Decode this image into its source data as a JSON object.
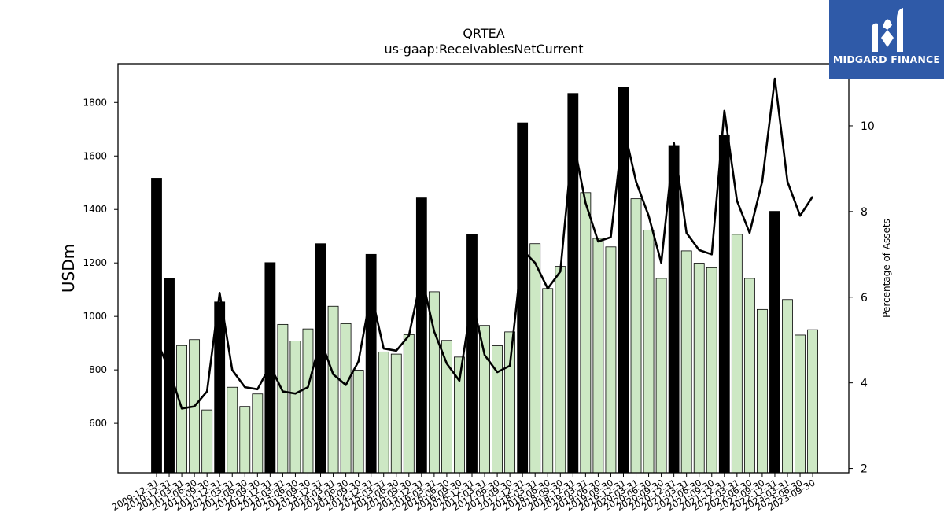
{
  "colors": {
    "bar_highlight": "#000000",
    "bar_regular": "#cde8c4",
    "bar_edge": "#000000",
    "line": "#000000",
    "logo_bg": "#2f5aa8"
  },
  "logo": {
    "text": "MIDGARD FINANCE",
    "icon": "midgard-logo-icon"
  },
  "chart_data": {
    "type": "bar",
    "title": "QRTEA",
    "subtitle": "us-gaap:ReceivablesNetCurrent",
    "ylabel": "USDm",
    "y2label": "Percentage of Assets",
    "ylim": [
      415,
      1945
    ],
    "y2lim": [
      1.9,
      11.45
    ],
    "yticks": [
      600,
      800,
      1000,
      1200,
      1400,
      1600,
      1800
    ],
    "y2ticks": [
      2,
      4,
      6,
      8,
      10
    ],
    "grid": false,
    "categories": [
      "2009-12-31",
      "2010-12-31",
      "2011-03-31",
      "2011-06-30",
      "2011-09-30",
      "2011-12-31",
      "2012-03-31",
      "2012-06-30",
      "2012-09-30",
      "2012-12-31",
      "2013-03-31",
      "2013-06-30",
      "2013-09-30",
      "2013-12-31",
      "2014-03-31",
      "2014-06-30",
      "2014-09-30",
      "2014-12-31",
      "2015-03-31",
      "2015-06-30",
      "2015-09-30",
      "2015-12-31",
      "2016-03-31",
      "2016-06-30",
      "2016-09-30",
      "2016-12-31",
      "2017-03-31",
      "2017-06-30",
      "2017-09-30",
      "2017-12-31",
      "2018-03-31",
      "2018-06-30",
      "2018-09-30",
      "2018-12-31",
      "2019-03-31",
      "2019-06-30",
      "2019-09-30",
      "2019-12-31",
      "2020-03-31",
      "2020-06-30",
      "2020-09-30",
      "2020-12-31",
      "2021-03-31",
      "2021-06-30",
      "2021-09-30",
      "2021-12-31",
      "2022-03-31",
      "2022-06-30",
      "2022-09-30",
      "2022-12-31",
      "2023-03-31",
      "2023-06-30",
      "2023-09-30"
    ],
    "highlight": [
      true,
      true,
      false,
      false,
      false,
      true,
      false,
      false,
      false,
      true,
      false,
      false,
      false,
      true,
      false,
      false,
      false,
      true,
      false,
      false,
      false,
      true,
      false,
      false,
      false,
      true,
      false,
      false,
      false,
      true,
      false,
      false,
      false,
      true,
      false,
      false,
      false,
      true,
      false,
      false,
      false,
      true,
      false,
      false,
      false,
      true,
      false,
      false,
      false,
      true,
      false,
      false,
      false
    ],
    "series": [
      {
        "name": "USDm",
        "type": "bar",
        "values": [
          1517,
          1142,
          891,
          913,
          650,
          1054,
          735,
          663,
          710,
          1201,
          970,
          908,
          953,
          1272,
          1038,
          973,
          799,
          1232,
          867,
          859,
          932,
          1443,
          1092,
          910,
          848,
          1307,
          966,
          890,
          942,
          1724,
          1272,
          1104,
          1187,
          1834,
          1463,
          1292,
          1260,
          1856,
          1440,
          1323,
          1142,
          1639,
          1245,
          1199,
          1182,
          1676,
          1307,
          1142,
          1026,
          1393,
          1063,
          930,
          950
        ]
      },
      {
        "name": "Percentage of Assets",
        "type": "line",
        "axis": "right",
        "values": [
          5.0,
          4.3,
          3.4,
          3.45,
          3.8,
          6.1,
          4.3,
          3.9,
          3.85,
          4.4,
          3.8,
          3.75,
          3.9,
          5.0,
          4.2,
          3.95,
          4.5,
          6.1,
          4.8,
          4.75,
          5.1,
          6.5,
          5.2,
          4.45,
          4.05,
          5.95,
          4.65,
          4.25,
          4.4,
          7.1,
          6.8,
          6.2,
          6.6,
          9.7,
          8.2,
          7.3,
          7.4,
          10.0,
          8.7,
          7.9,
          6.8,
          9.6,
          7.5,
          7.1,
          7.0,
          10.35,
          8.25,
          7.5,
          8.7,
          11.1,
          8.7,
          7.9,
          8.35
        ]
      }
    ]
  }
}
